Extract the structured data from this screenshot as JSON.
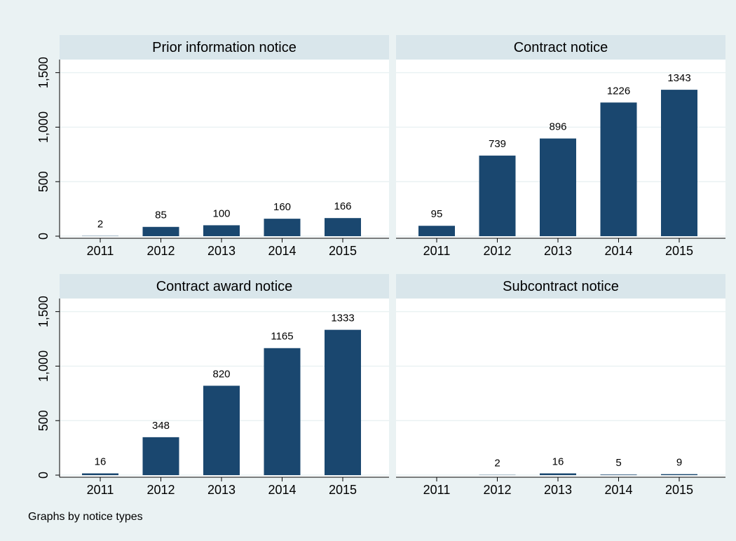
{
  "chart_data": [
    {
      "type": "bar",
      "title": "Prior information notice",
      "categories": [
        "2011",
        "2012",
        "2013",
        "2014",
        "2015"
      ],
      "values": [
        2,
        85,
        100,
        160,
        166
      ],
      "color": "#1a476f",
      "ylim": [
        0,
        1620
      ],
      "yticks": [
        0,
        500,
        {
          "value": 1000,
          "label": "1,000"
        },
        {
          "value": 1500,
          "label": "1,500"
        }
      ],
      "grid": true
    },
    {
      "type": "bar",
      "title": "Contract notice",
      "categories": [
        "2011",
        "2012",
        "2013",
        "2014",
        "2015"
      ],
      "values": [
        95,
        739,
        896,
        1226,
        1343
      ],
      "color": "#1a476f",
      "ylim": [
        0,
        1620
      ],
      "yticks": [
        0,
        500,
        {
          "value": 1000,
          "label": "1,000"
        },
        {
          "value": 1500,
          "label": "1,500"
        }
      ],
      "grid": true
    },
    {
      "type": "bar",
      "title": "Contract award notice",
      "categories": [
        "2011",
        "2012",
        "2013",
        "2014",
        "2015"
      ],
      "values": [
        16,
        348,
        820,
        1165,
        1333
      ],
      "color": "#1a476f",
      "ylim": [
        0,
        1620
      ],
      "yticks": [
        0,
        500,
        {
          "value": 1000,
          "label": "1,000"
        },
        {
          "value": 1500,
          "label": "1,500"
        }
      ],
      "grid": true
    },
    {
      "type": "bar",
      "title": "Subcontract notice",
      "categories": [
        "2011",
        "2012",
        "2013",
        "2014",
        "2015"
      ],
      "values": [
        null,
        2,
        16,
        5,
        9
      ],
      "color": "#1a476f",
      "ylim": [
        0,
        1620
      ],
      "yticks": [
        0,
        500,
        {
          "value": 1000,
          "label": "1,000"
        },
        {
          "value": 1500,
          "label": "1,500"
        }
      ],
      "grid": true
    }
  ],
  "note": "Graphs by notice types"
}
